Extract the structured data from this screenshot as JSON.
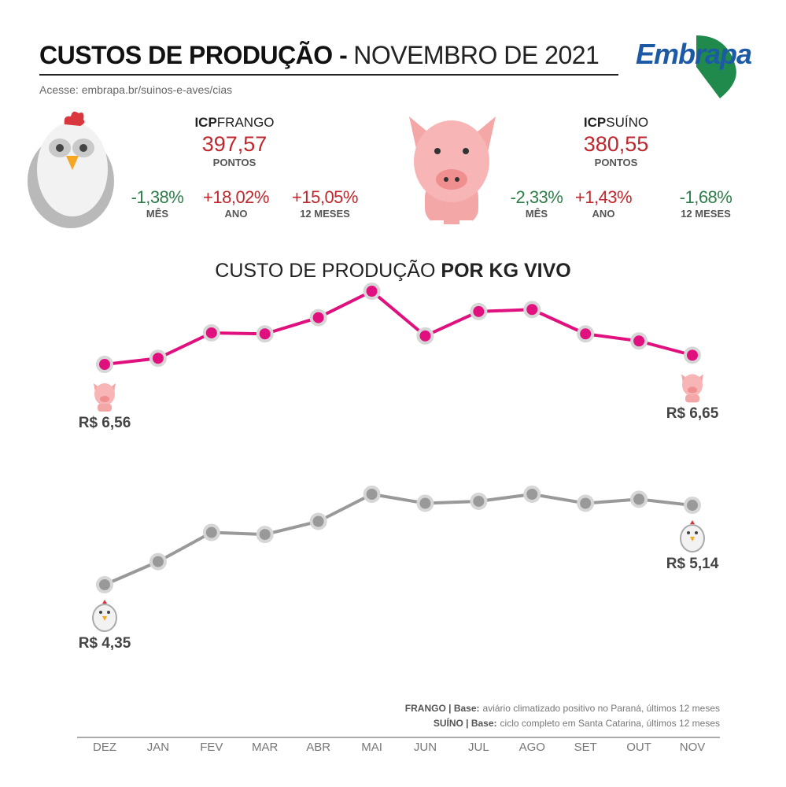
{
  "header": {
    "title_bold": "CUSTOS DE PRODUÇÃO -",
    "title_light": "NOVEMBRO DE 2021",
    "logo": "Embrapa",
    "link": "Acesse: embrapa.br/suinos-e-aves/cias"
  },
  "indices": [
    {
      "prefix": "ICP",
      "name": "FRANGO",
      "value": "397,57",
      "unit": "PONTOS",
      "stats": [
        {
          "value": "-1,38%",
          "label": "MÊS",
          "color": "#2e7d4a"
        },
        {
          "value": "+18,02%",
          "label": "ANO",
          "color": "#c0272d"
        },
        {
          "value": "+15,05%",
          "label": "12 MESES",
          "color": "#c0272d"
        }
      ]
    },
    {
      "prefix": "ICP",
      "name": "SUÍNO",
      "value": "380,55",
      "unit": "PONTOS",
      "stats": [
        {
          "value": "-2,33%",
          "label": "MÊS",
          "color": "#2e7d4a"
        },
        {
          "value": "+1,43%",
          "label": "ANO",
          "color": "#c0272d"
        },
        {
          "value": "-1,68%",
          "label": "12 MESES",
          "color": "#2e7d4a"
        }
      ]
    }
  ],
  "chart_data": {
    "type": "line",
    "title": "CUSTO DE PRODUÇÃO",
    "title_bold": "POR KG VIVO",
    "categories": [
      "DEZ",
      "JAN",
      "FEV",
      "MAR",
      "ABR",
      "MAI",
      "JUN",
      "JUL",
      "AGO",
      "SET",
      "OUT",
      "NOV"
    ],
    "series": [
      {
        "color": "#e0117f",
        "values": [
          6.56,
          6.62,
          6.87,
          6.86,
          7.02,
          7.28,
          6.84,
          7.08,
          7.1,
          6.86,
          6.79,
          6.65
        ],
        "value_labels": [
          "R$ 6,56",
          null,
          null,
          null,
          null,
          null,
          null,
          null,
          null,
          null,
          null,
          "R$ 6,65"
        ]
      },
      {
        "color": "#999999",
        "values": [
          4.35,
          4.58,
          4.87,
          4.85,
          4.98,
          5.25,
          5.16,
          5.18,
          5.25,
          5.16,
          5.2,
          5.14
        ],
        "value_labels": [
          "R$ 4,35",
          null,
          null,
          null,
          null,
          null,
          null,
          null,
          null,
          null,
          null,
          "R$ 5,14"
        ]
      }
    ]
  },
  "notes": [
    {
      "bold": "FRANGO | Base:",
      "text": "aviário climatizado positivo no Paraná, últimos 12 meses"
    },
    {
      "bold": "SUÍNO | Base:",
      "text": "ciclo completo em Santa Catarina, últimos 12 meses"
    }
  ]
}
